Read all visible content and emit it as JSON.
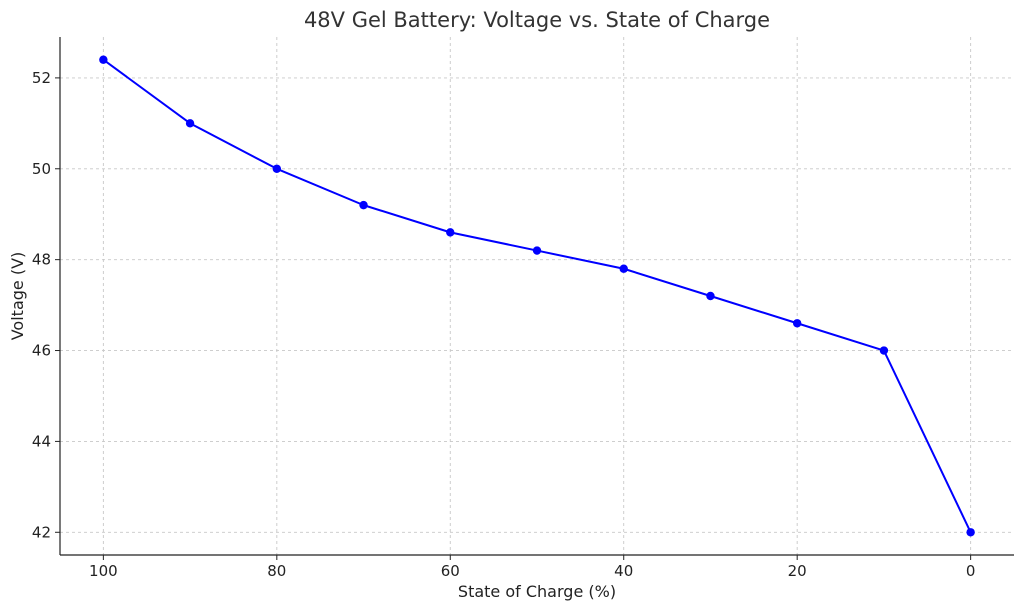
{
  "chart_data": {
    "type": "line",
    "title": "48V Gel Battery: Voltage vs. State of Charge",
    "xlabel": "State of Charge (%)",
    "ylabel": "Voltage (V)",
    "x_inverted": true,
    "xlim": [
      105,
      -5
    ],
    "ylim": [
      41.5,
      52.9
    ],
    "xticks": [
      100,
      80,
      60,
      40,
      20,
      0
    ],
    "yticks": [
      42,
      44,
      46,
      48,
      50,
      52
    ],
    "grid": true,
    "series": [
      {
        "color": "#0000ff",
        "marker": "circle",
        "x": [
          100,
          90,
          80,
          70,
          60,
          50,
          40,
          30,
          20,
          10,
          0
        ],
        "y": [
          52.4,
          51.0,
          50.0,
          49.2,
          48.6,
          48.2,
          47.8,
          47.2,
          46.6,
          46.0,
          42.0
        ]
      }
    ]
  }
}
